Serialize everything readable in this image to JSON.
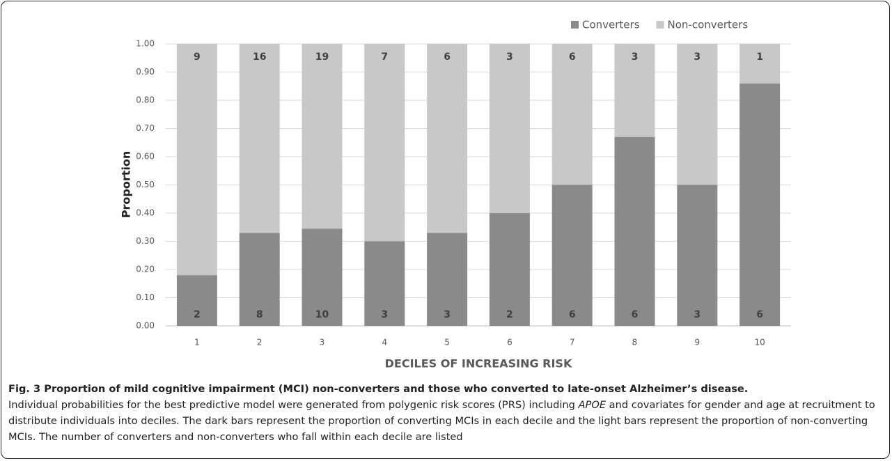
{
  "chart_data": {
    "type": "stacked_bar",
    "legend": "top-right",
    "grid": true,
    "y_label": "Proportion",
    "x_label": "DECILES OF INCREASING RISK",
    "categories": [
      "1",
      "2",
      "3",
      "4",
      "5",
      "6",
      "7",
      "8",
      "9",
      "10"
    ],
    "ylim": [
      0,
      1
    ],
    "yticks": [
      {
        "value": 0,
        "label": "0.00"
      },
      {
        "value": 0.1,
        "label": "0.10"
      },
      {
        "value": 0.2,
        "label": "0.20"
      },
      {
        "value": 0.3,
        "label": "0.30"
      },
      {
        "value": 0.4,
        "label": "0.40"
      },
      {
        "value": 0.5,
        "label": "0.50"
      },
      {
        "value": 0.6,
        "label": "0.60"
      },
      {
        "value": 0.7,
        "label": "0.70"
      },
      {
        "value": 0.8,
        "label": "0.80"
      },
      {
        "value": 0.9,
        "label": "0.90"
      },
      {
        "value": 1,
        "label": "1.00"
      }
    ],
    "series": [
      {
        "name": "Converters",
        "color": "#8a8a8a",
        "values": [
          0.18,
          0.33,
          0.345,
          0.3,
          0.33,
          0.4,
          0.5,
          0.67,
          0.5,
          0.86
        ],
        "counts": [
          2,
          8,
          10,
          3,
          3,
          2,
          6,
          6,
          3,
          6
        ]
      },
      {
        "name": "Non-converters",
        "color": "#c8c8c8",
        "values": [
          0.82,
          0.67,
          0.655,
          0.7,
          0.67,
          0.6,
          0.5,
          0.33,
          0.5,
          0.14
        ],
        "counts": [
          9,
          16,
          19,
          7,
          6,
          3,
          6,
          3,
          3,
          1
        ]
      }
    ]
  },
  "caption": {
    "title": "Fig. 3 Proportion of mild cognitive impairment (MCI) non-converters and those who converted to late-onset Alzheimer’s disease.",
    "body_before": "Individual probabilities for the best predictive model were generated from polygenic risk scores (PRS) including ",
    "body_italic": "APOE",
    "body_after": " and covariates for gender and age at recruitment to distribute individuals into deciles. The dark bars represent the proportion of converting MCIs in each decile and the light bars represent the proportion of non-converting MCIs. The number of converters and non-converters who fall within each decile are listed"
  }
}
